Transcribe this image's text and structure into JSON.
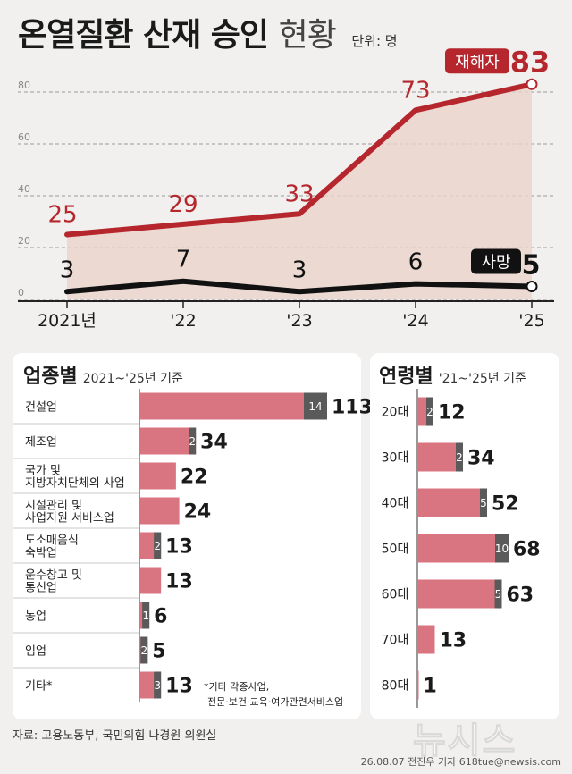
{
  "title": "온열질환 산재 승인",
  "title_suffix": "현황",
  "unit_label": "단위: 명",
  "line_chart": {
    "type": "line",
    "categories": [
      "2021년",
      "'22",
      "'23",
      "'24",
      "'25"
    ],
    "series": [
      {
        "name": "재해자",
        "values": [
          25,
          29,
          33,
          73,
          83
        ]
      },
      {
        "name": "사망",
        "values": [
          3,
          7,
          3,
          6,
          5
        ]
      }
    ],
    "ylim": [
      0,
      90
    ],
    "yticks": [
      0,
      20,
      40,
      60,
      80
    ],
    "colors": {
      "injured": "#b5272d",
      "death": "#111111",
      "fill": "#ead3ca"
    }
  },
  "industry_chart": {
    "type": "bar",
    "title": "업종별",
    "subtitle": "2021~'25년 기준",
    "categories": [
      "건설업",
      "제조업",
      "국가 및\n지방자치단체의 사업",
      "시설관리 및\n사업지원 서비스업",
      "도소매음식\n숙박업",
      "운수창고 및\n통신업",
      "농업",
      "임업",
      "기타*"
    ],
    "series": [
      {
        "name": "재해자",
        "values": [
          113,
          34,
          22,
          24,
          13,
          13,
          6,
          5,
          13
        ]
      },
      {
        "name": "사망",
        "values": [
          14,
          2,
          0,
          0,
          2,
          0,
          1,
          2,
          3
        ]
      }
    ],
    "xlim": [
      0,
      113
    ],
    "colors": {
      "total": "#d97580",
      "death": "#5a5a5a"
    },
    "footnote": "*기타 각종사업,\n전문·보건·교육·여가관련서비스업"
  },
  "age_chart": {
    "type": "bar",
    "title": "연령별",
    "subtitle": "'21~'25년 기준",
    "categories": [
      "20대",
      "30대",
      "40대",
      "50대",
      "60대",
      "70대",
      "80대"
    ],
    "series": [
      {
        "name": "재해자",
        "values": [
          12,
          34,
          52,
          68,
          63,
          13,
          1
        ]
      },
      {
        "name": "사망",
        "values": [
          2,
          2,
          5,
          10,
          5,
          0,
          0
        ]
      }
    ],
    "xlim": [
      0,
      68
    ],
    "colors": {
      "total": "#d97580",
      "death": "#5a5a5a"
    }
  },
  "source": "자료: 고용노동부, 국민의힘 나경원 의원실",
  "credit": "26.08.07 전진우 기자 618tue@newsis.com",
  "watermark": "뉴시스"
}
